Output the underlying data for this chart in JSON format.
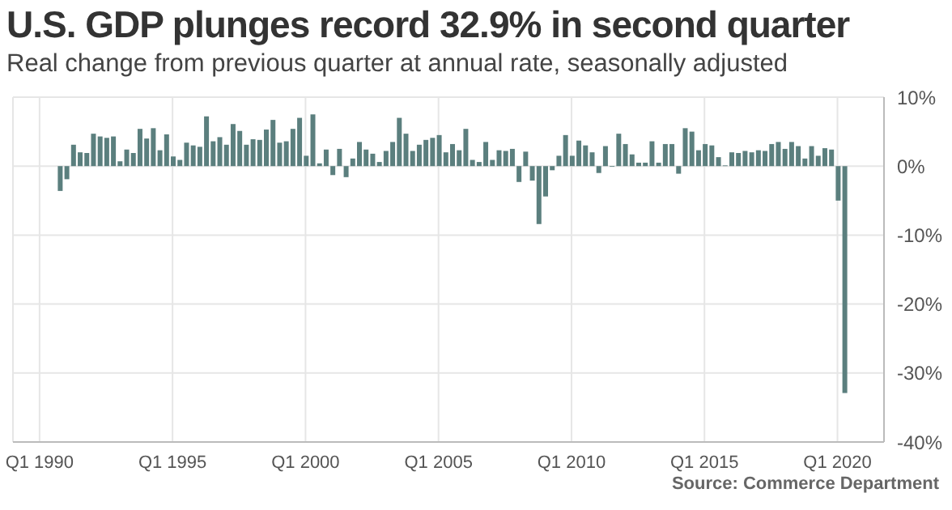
{
  "chart_data": {
    "type": "bar",
    "title": "U.S. GDP plunges record 32.9% in second quarter",
    "subtitle": "Real change from previous quarter at annual rate, seasonally adjusted",
    "annotations": [
      "Source: Commerce Department"
    ],
    "x": [
      "1990-07",
      "1990-10",
      "1991-01",
      "1991-04",
      "1991-07",
      "1991-10",
      "1992-01",
      "1992-04",
      "1992-07",
      "1992-10",
      "1993-01",
      "1993-04",
      "1993-07",
      "1993-10",
      "1994-01",
      "1994-04",
      "1994-07",
      "1994-10",
      "1995-01",
      "1995-04",
      "1995-07",
      "1995-10",
      "1996-01",
      "1996-04",
      "1996-07",
      "1996-10",
      "1997-01",
      "1997-04",
      "1997-07",
      "1997-10",
      "1998-01",
      "1998-04",
      "1998-07",
      "1998-10",
      "1999-01",
      "1999-04",
      "1999-07",
      "1999-10",
      "2000-01",
      "2000-04",
      "2000-07",
      "2000-10",
      "2001-01",
      "2001-04",
      "2001-07",
      "2001-10",
      "2002-01",
      "2002-04",
      "2002-07",
      "2002-10",
      "2003-01",
      "2003-04",
      "2003-07",
      "2003-10",
      "2004-01",
      "2004-04",
      "2004-07",
      "2004-10",
      "2005-01",
      "2005-04",
      "2005-07",
      "2005-10",
      "2006-01",
      "2006-04",
      "2006-07",
      "2006-10",
      "2007-01",
      "2007-04",
      "2007-07",
      "2007-10",
      "2008-01",
      "2008-04",
      "2008-07",
      "2008-10",
      "2009-01",
      "2009-04",
      "2009-07",
      "2009-10",
      "2010-01",
      "2010-04",
      "2010-07",
      "2010-10",
      "2011-01",
      "2011-04",
      "2011-07",
      "2011-10",
      "2012-01",
      "2012-04",
      "2012-07",
      "2012-10",
      "2013-01",
      "2013-04",
      "2013-07",
      "2013-10",
      "2014-01",
      "2014-04",
      "2014-07",
      "2014-10",
      "2015-01",
      "2015-04",
      "2015-07",
      "2015-10",
      "2016-01",
      "2016-04",
      "2016-07",
      "2016-10",
      "2017-01",
      "2017-04",
      "2017-07",
      "2017-10",
      "2018-01",
      "2018-04",
      "2018-07",
      "2018-10",
      "2019-01",
      "2019-04",
      "2019-07",
      "2019-10",
      "2020-01",
      "2020-04"
    ],
    "values": [
      0.0,
      -3.6,
      -1.9,
      3.1,
      2.0,
      1.9,
      4.7,
      4.3,
      4.1,
      4.3,
      0.7,
      2.4,
      1.9,
      5.4,
      4.0,
      5.5,
      2.3,
      4.6,
      1.4,
      0.9,
      3.4,
      3.0,
      2.8,
      7.2,
      3.6,
      4.2,
      3.1,
      6.1,
      5.1,
      3.1,
      3.9,
      3.8,
      5.3,
      6.7,
      3.4,
      3.6,
      5.4,
      7.0,
      1.5,
      7.5,
      0.4,
      2.4,
      -1.3,
      2.5,
      -1.6,
      1.1,
      3.5,
      2.4,
      1.8,
      0.6,
      2.2,
      3.5,
      7.0,
      4.7,
      2.2,
      3.1,
      3.8,
      4.1,
      4.5,
      2.0,
      3.2,
      2.3,
      5.4,
      0.9,
      0.6,
      3.5,
      0.9,
      2.3,
      2.2,
      2.5,
      -2.3,
      2.1,
      -2.1,
      -8.4,
      -4.4,
      -0.6,
      1.5,
      4.5,
      1.5,
      3.7,
      3.0,
      2.0,
      -1.0,
      2.9,
      -0.1,
      4.7,
      3.2,
      1.7,
      0.5,
      0.5,
      3.6,
      0.5,
      3.2,
      3.2,
      -1.1,
      5.5,
      5.0,
      2.3,
      3.2,
      3.0,
      1.3,
      0.1,
      2.0,
      1.9,
      2.2,
      2.0,
      2.3,
      2.2,
      3.2,
      3.5,
      2.5,
      3.5,
      2.9,
      1.1,
      2.9,
      1.5,
      2.6,
      2.4,
      -5.0,
      -32.9
    ],
    "color": "#5b7f7e",
    "xlim": [
      "1989-01",
      "2021-10"
    ],
    "xticks": [
      {
        "value": "1990-01",
        "label": "Q1 1990"
      },
      {
        "value": "1995-01",
        "label": "Q1 1995"
      },
      {
        "value": "2000-01",
        "label": "Q1 2000"
      },
      {
        "value": "2005-01",
        "label": "Q1 2005"
      },
      {
        "value": "2010-01",
        "label": "Q1 2010"
      },
      {
        "value": "2015-01",
        "label": "Q1 2015"
      },
      {
        "value": "2020-01",
        "label": "Q1 2020"
      }
    ],
    "ylim": [
      -40,
      10
    ],
    "yticks": [
      {
        "value": -40,
        "label": "-40%"
      },
      {
        "value": -30,
        "label": "-30%"
      },
      {
        "value": -20,
        "label": "-20%"
      },
      {
        "value": -10,
        "label": "-10%"
      },
      {
        "value": 0,
        "label": "0%"
      },
      {
        "value": 10,
        "label": "10%"
      }
    ],
    "grid": true
  }
}
